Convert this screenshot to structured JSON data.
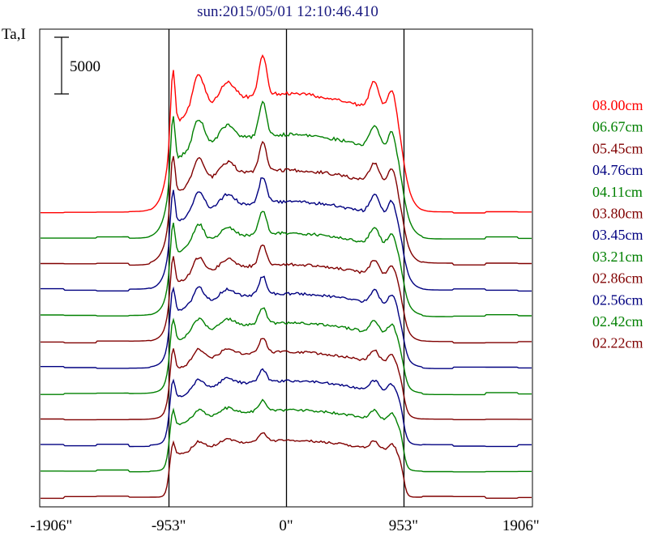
{
  "chart_data": {
    "type": "line",
    "title": "sun:2015/05/01 12:10:46.410",
    "ylabel": "Ta,I",
    "scale_bar_label": "5000",
    "scale_bar_value": 5000,
    "xlim": [
      -2000,
      2000
    ],
    "x_ticks": [
      {
        "value": -1906,
        "label": "-1906\""
      },
      {
        "value": -953,
        "label": "-953\""
      },
      {
        "value": 0,
        "label": "0\""
      },
      {
        "value": 953,
        "label": "953\""
      },
      {
        "value": 1906,
        "label": "1906\""
      }
    ],
    "reference_lines": [
      -953,
      0,
      953
    ],
    "series": [
      {
        "name": "08.00cm",
        "color": "#ff0000"
      },
      {
        "name": "06.67cm",
        "color": "#008000"
      },
      {
        "name": "05.45cm",
        "color": "#800000"
      },
      {
        "name": "04.76cm",
        "color": "#000080"
      },
      {
        "name": "04.11cm",
        "color": "#008000"
      },
      {
        "name": "03.80cm",
        "color": "#800000"
      },
      {
        "name": "03.45cm",
        "color": "#000080"
      },
      {
        "name": "03.21cm",
        "color": "#008000"
      },
      {
        "name": "02.86cm",
        "color": "#800000"
      },
      {
        "name": "02.56cm",
        "color": "#000080"
      },
      {
        "name": "02.42cm",
        "color": "#008000"
      },
      {
        "name": "02.22cm",
        "color": "#800000"
      }
    ],
    "grid": false,
    "legend_position": "right"
  }
}
